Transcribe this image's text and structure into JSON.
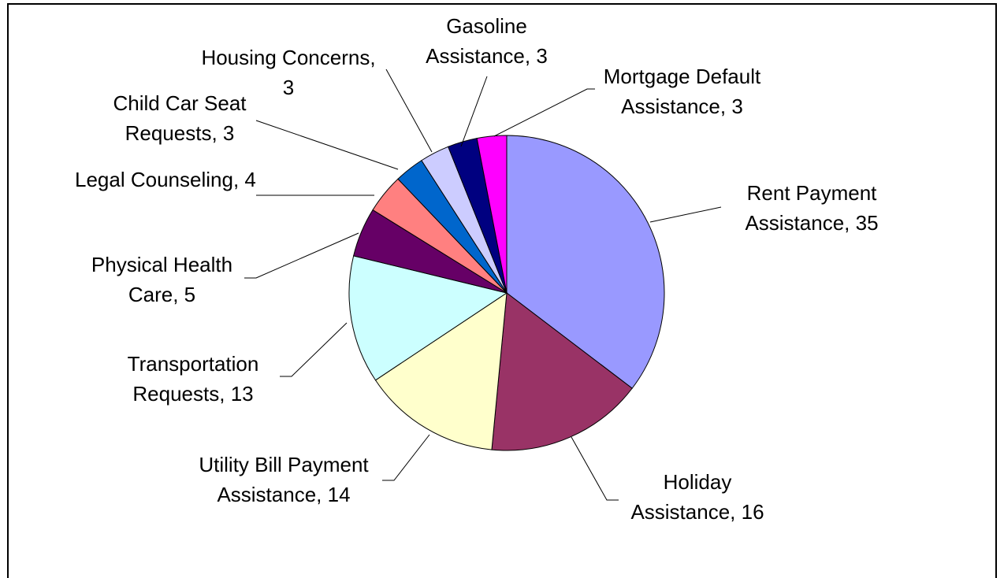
{
  "chart_data": {
    "type": "pie",
    "categories": [
      "Rent Payment Assistance",
      "Holiday Assistance",
      "Utility Bill Payment Assistance",
      "Transportation Requests",
      "Physical Health Care",
      "Legal Counseling",
      "Child Car Seat Requests",
      "Housing Concerns",
      "Gasoline Assistance",
      "Mortgage Default Assistance"
    ],
    "values": [
      35,
      16,
      14,
      13,
      5,
      4,
      3,
      3,
      3,
      3
    ],
    "colors": [
      "#9999ff",
      "#993366",
      "#ffffcc",
      "#ccffff",
      "#660066",
      "#ff8080",
      "#0066cc",
      "#ccccff",
      "#000080",
      "#ff00ff"
    ],
    "label_separator": ", "
  }
}
